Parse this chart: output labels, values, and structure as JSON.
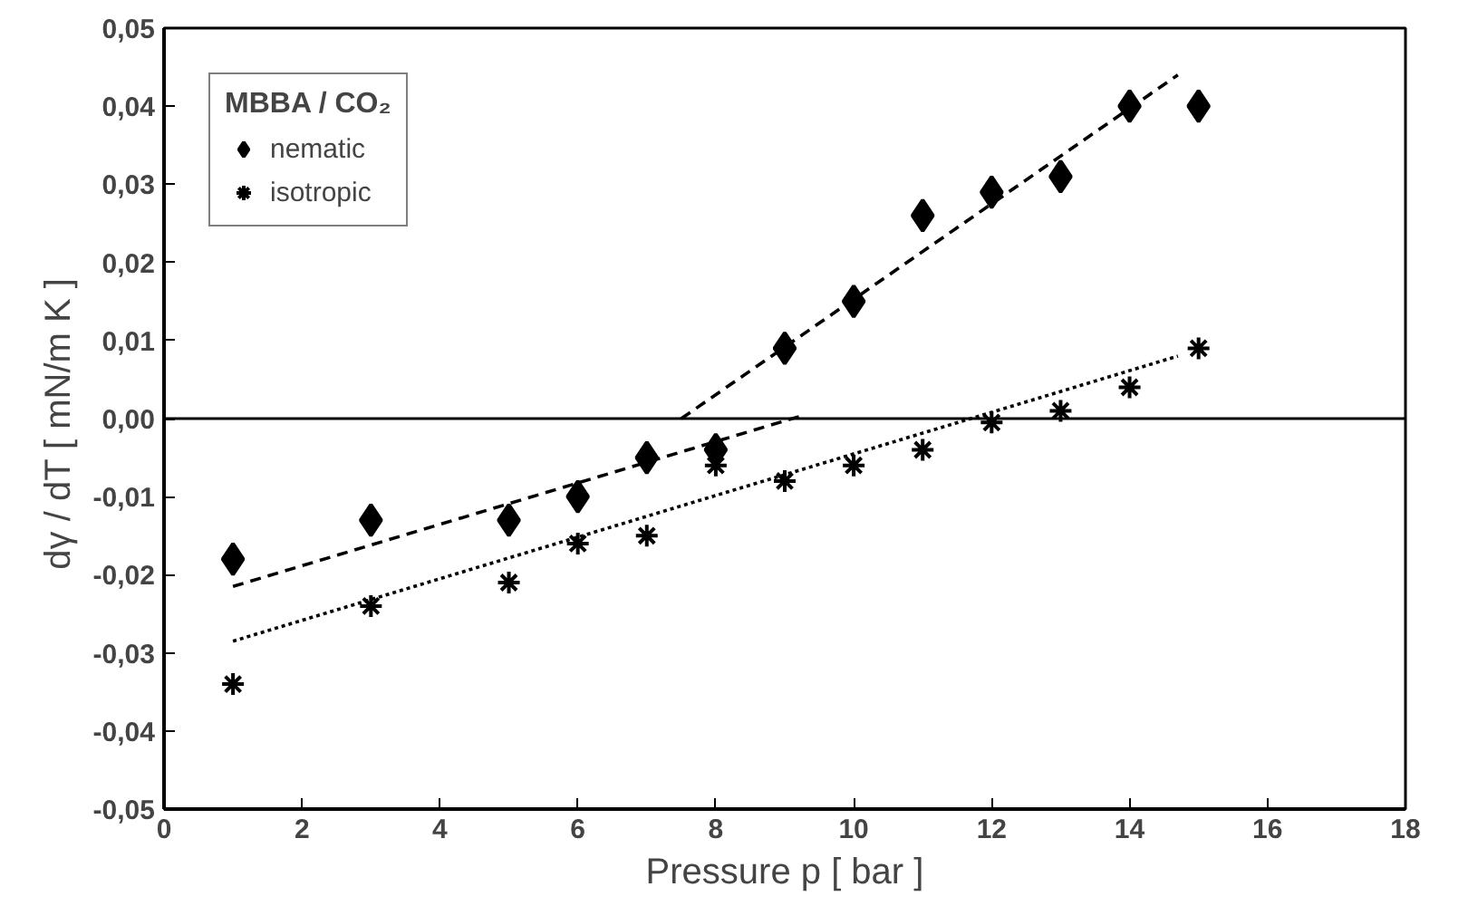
{
  "chart_data": {
    "type": "scatter",
    "xlabel": "Pressure p [ bar ]",
    "ylabel": "dγ / dT  [ mN/m K ]",
    "legend_title": "MBBA / CO₂",
    "legend": "top left",
    "grid": false,
    "xlim": [
      0,
      18
    ],
    "xticks": [
      0,
      2,
      4,
      6,
      8,
      10,
      12,
      14,
      16,
      18
    ],
    "ylim": [
      -0.05,
      0.05
    ],
    "yticks": [
      {
        "value": -0.05,
        "label": "-0,05"
      },
      {
        "value": -0.04,
        "label": "-0,04"
      },
      {
        "value": -0.03,
        "label": "-0,03"
      },
      {
        "value": -0.02,
        "label": "-0,02"
      },
      {
        "value": -0.01,
        "label": "-0,01"
      },
      {
        "value": 0,
        "label": "0,00"
      },
      {
        "value": 0.01,
        "label": "0,01"
      },
      {
        "value": 0.02,
        "label": "0,02"
      },
      {
        "value": 0.03,
        "label": "0,03"
      },
      {
        "value": 0.04,
        "label": "0,04"
      },
      {
        "value": 0.05,
        "label": "0,05"
      }
    ],
    "x": [
      1,
      3,
      5,
      6,
      7,
      8,
      9,
      10,
      11,
      12,
      13,
      14,
      15
    ],
    "series": [
      {
        "name": "nematic",
        "color": "#000000",
        "marker": "diamond",
        "values": [
          -0.018,
          -0.013,
          -0.013,
          -0.01,
          -0.005,
          -0.004,
          0.009,
          0.015,
          0.026,
          0.029,
          0.031,
          0.04,
          0.04
        ]
      },
      {
        "name": "isotropic",
        "color": "#000000",
        "marker": "cross",
        "values": [
          -0.034,
          -0.024,
          -0.021,
          -0.016,
          -0.015,
          -0.006,
          -0.008,
          -0.006,
          -0.004,
          -0.0005,
          0.001,
          0.004,
          0.009
        ]
      },
      {
        "type": "line",
        "color": "#000000",
        "line_style": "dashed",
        "x": [
          1,
          9.3
        ],
        "values": [
          -0.0215,
          0.0005
        ]
      },
      {
        "type": "line",
        "color": "#000000",
        "line_style": "dashed",
        "x": [
          7.5,
          14.7
        ],
        "values": [
          0.0,
          0.044
        ]
      },
      {
        "type": "line",
        "color": "#000000",
        "line_style": "dotted",
        "x": [
          1,
          14.7
        ],
        "values": [
          -0.0285,
          0.008
        ]
      }
    ],
    "ref_lines": [
      {
        "axis": "y",
        "value": 0,
        "color": "#000000",
        "line_style": "solid"
      }
    ]
  }
}
